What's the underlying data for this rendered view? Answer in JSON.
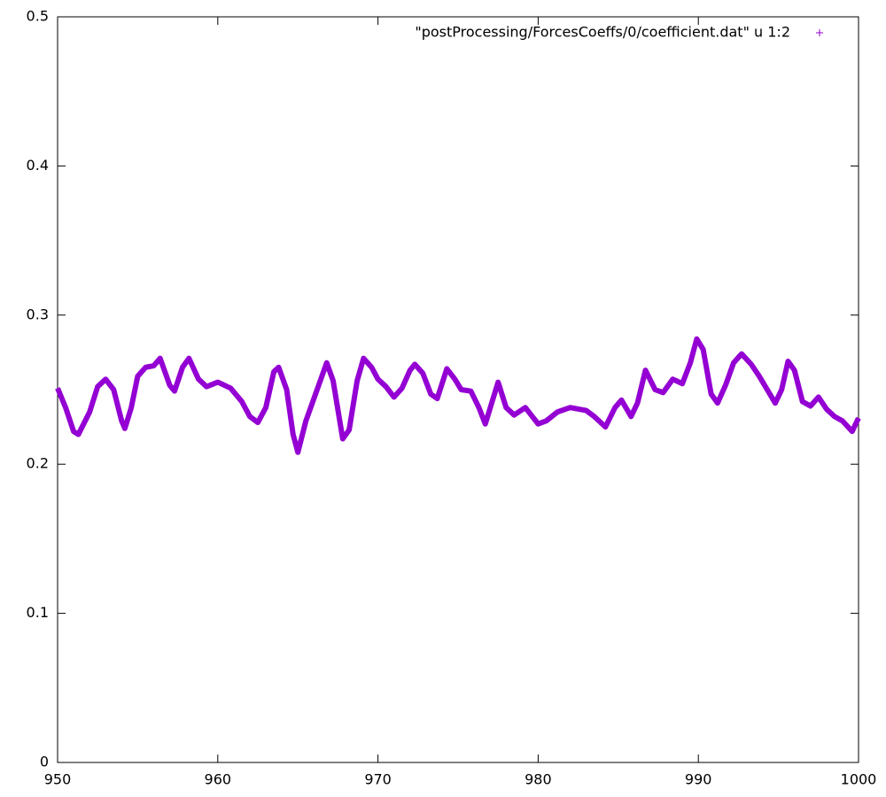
{
  "chart_data": {
    "type": "line",
    "legend_label": "\"postProcessing/ForcesCoeffs/0/coefficient.dat\" u 1:2",
    "color": "#9400d3",
    "x": [
      950,
      950.5,
      951,
      951.3,
      952,
      952.5,
      953,
      953.5,
      954,
      954.2,
      954.6,
      955,
      955.5,
      956,
      956.4,
      957,
      957.3,
      957.8,
      958.2,
      958.8,
      959.3,
      960,
      960.8,
      961.5,
      962,
      962.5,
      963,
      963.5,
      963.8,
      964.3,
      964.7,
      965,
      965.5,
      966,
      966.5,
      966.8,
      967.2,
      967.8,
      968.2,
      968.7,
      969.1,
      969.6,
      970,
      970.5,
      971,
      971.5,
      972,
      972.3,
      972.8,
      973.3,
      973.7,
      974.3,
      974.8,
      975.2,
      975.8,
      976.3,
      976.7,
      977.1,
      977.5,
      978,
      978.5,
      979.2,
      980,
      980.5,
      981.2,
      982,
      983,
      983.5,
      984.2,
      984.8,
      985.2,
      985.8,
      986.2,
      986.7,
      987.3,
      987.8,
      988.4,
      989,
      989.5,
      989.9,
      990.3,
      990.8,
      991.2,
      991.7,
      992.2,
      992.7,
      993.3,
      993.8,
      994.3,
      994.8,
      995.2,
      995.6,
      996,
      996.5,
      997,
      997.5,
      998,
      998.5,
      999,
      999.6,
      1000
    ],
    "values": [
      0.251,
      0.238,
      0.222,
      0.22,
      0.235,
      0.252,
      0.257,
      0.25,
      0.229,
      0.224,
      0.238,
      0.259,
      0.265,
      0.266,
      0.271,
      0.253,
      0.249,
      0.265,
      0.271,
      0.257,
      0.252,
      0.255,
      0.251,
      0.242,
      0.232,
      0.228,
      0.238,
      0.262,
      0.265,
      0.25,
      0.22,
      0.208,
      0.229,
      0.244,
      0.259,
      0.268,
      0.256,
      0.217,
      0.223,
      0.256,
      0.271,
      0.265,
      0.257,
      0.252,
      0.245,
      0.251,
      0.263,
      0.267,
      0.261,
      0.247,
      0.244,
      0.264,
      0.257,
      0.25,
      0.249,
      0.238,
      0.227,
      0.241,
      0.255,
      0.238,
      0.233,
      0.238,
      0.227,
      0.229,
      0.235,
      0.238,
      0.236,
      0.232,
      0.225,
      0.238,
      0.243,
      0.232,
      0.241,
      0.263,
      0.25,
      0.248,
      0.257,
      0.254,
      0.268,
      0.284,
      0.277,
      0.247,
      0.241,
      0.253,
      0.268,
      0.274,
      0.267,
      0.259,
      0.25,
      0.241,
      0.25,
      0.269,
      0.263,
      0.242,
      0.239,
      0.245,
      0.237,
      0.232,
      0.229,
      0.222,
      0.231
    ],
    "xlim": [
      950,
      1000
    ],
    "xticks": [
      950,
      960,
      970,
      980,
      990,
      1000
    ],
    "ylim": [
      0,
      0.5
    ],
    "yticks": [
      0,
      0.1,
      0.2,
      0.3,
      0.4,
      0.5
    ]
  }
}
